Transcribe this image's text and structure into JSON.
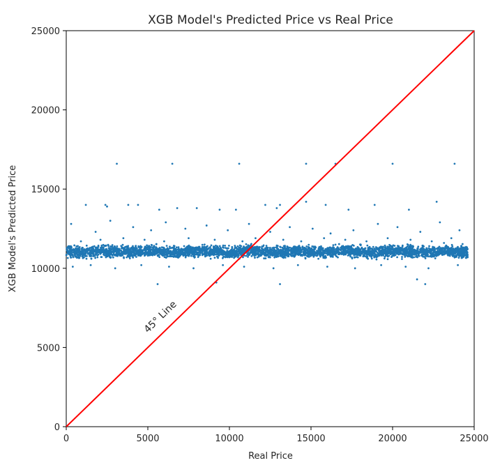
{
  "chart_data": {
    "type": "scatter",
    "title": "XGB Model's Predicted Price vs Real Price",
    "xlabel": "Real Price",
    "ylabel": "XGB Model's Predicted Price",
    "xlim": [
      0,
      25000
    ],
    "ylim": [
      0,
      25000
    ],
    "xticks": [
      "0",
      "5000",
      "10000",
      "15000",
      "20000",
      "25000"
    ],
    "yticks": [
      "0",
      "5000",
      "10000",
      "15000",
      "20000",
      "25000"
    ],
    "grid": false,
    "series": [
      {
        "marker": "point",
        "color": "#1f77b4",
        "x": [
          3100,
          6500,
          10600,
          14700,
          16500,
          20000,
          23800,
          1200,
          2400,
          2500,
          3800,
          4400,
          5700,
          6800,
          8000,
          9400,
          10400,
          12200,
          12900,
          13100,
          14700,
          15900,
          17300,
          18900,
          21000,
          22700,
          300,
          1800,
          2700,
          4100,
          5200,
          6100,
          7300,
          8600,
          9900,
          11200,
          12500,
          13700,
          15100,
          16200,
          17600,
          19100,
          20300,
          21700,
          22900,
          24100,
          900,
          2100,
          3500,
          4800,
          6000,
          7500,
          9100,
          10800,
          11600,
          13300,
          14400,
          15800,
          17100,
          18400,
          19700,
          21100,
          22400,
          23600,
          5600,
          9200,
          13100,
          22000,
          21500,
          400,
          1500,
          3000,
          4600,
          6300,
          7800,
          9600,
          10900,
          12700,
          14200,
          16000,
          17700,
          19300,
          20800,
          22200,
          24000
        ],
        "y": [
          16600,
          16600,
          16600,
          16600,
          16600,
          16600,
          16600,
          14000,
          14000,
          13900,
          14000,
          14000,
          13700,
          13800,
          13800,
          13700,
          13700,
          14000,
          13800,
          14000,
          14200,
          14000,
          13700,
          14000,
          13700,
          14200,
          12800,
          12300,
          13000,
          12600,
          12400,
          12900,
          12500,
          12700,
          12400,
          12800,
          12300,
          12600,
          12500,
          12200,
          12400,
          12800,
          12600,
          12300,
          12900,
          12400,
          11700,
          11800,
          11900,
          11800,
          11700,
          11900,
          11800,
          11700,
          11900,
          11800,
          11700,
          11900,
          11800,
          11700,
          11900,
          11800,
          11700,
          11900,
          9000,
          9100,
          9000,
          9000,
          9300,
          10100,
          10200,
          10000,
          10200,
          10100,
          10000,
          10200,
          10100,
          10000,
          10200,
          10100,
          10000,
          10200,
          10100,
          10000,
          10200
        ]
      },
      {
        "marker": "point-cloud",
        "color": "#1f77b4",
        "x": [
          0,
          1000,
          2000,
          3000,
          4000,
          5000,
          6000,
          7000,
          8000,
          9000,
          10000,
          11000,
          12000,
          13000,
          14000,
          15000,
          16000,
          17000,
          18000,
          19000,
          20000,
          21000,
          22000,
          23000,
          24000,
          24600
        ],
        "y": [
          11050,
          11000,
          11100,
          11050,
          11000,
          11100,
          11050,
          11000,
          11100,
          11050,
          11000,
          11100,
          11050,
          11000,
          11100,
          11050,
          11000,
          11100,
          11050,
          11000,
          11100,
          11050,
          11000,
          11100,
          11050,
          11000
        ],
        "spread": 350
      }
    ],
    "reference_line": {
      "color": "#ff0000",
      "from": [
        0,
        0
      ],
      "to": [
        25000,
        25000
      ],
      "label": "45° Line",
      "label_at": [
        5000,
        5900
      ]
    }
  }
}
